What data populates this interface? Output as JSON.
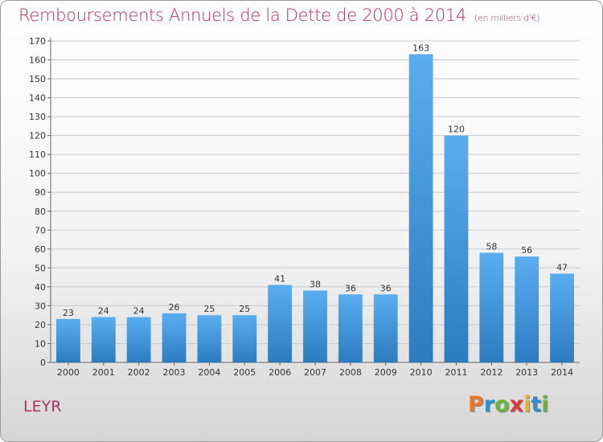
{
  "header": {
    "title": "Remboursements Annuels de la Dette de 2000 à 2014",
    "unit": "(en milliers d'€)"
  },
  "footer": {
    "place": "LEYR",
    "logo_letters": [
      "P",
      "r",
      "o",
      "x",
      "i",
      "t",
      "i"
    ],
    "logo_colors": [
      "#e8782a",
      "#2f8fd0",
      "#6cb33e",
      "#d93a3a",
      "#e8b020",
      "#2f8fd0",
      "#6cb33e"
    ]
  },
  "colors": {
    "title": "#b03060",
    "bar_light": "#5aaef0",
    "bar_dark": "#2b7cc0",
    "grid": "#c8c8c8"
  },
  "chart_data": {
    "type": "bar",
    "categories": [
      "2000",
      "2001",
      "2002",
      "2003",
      "2004",
      "2005",
      "2006",
      "2007",
      "2008",
      "2009",
      "2010",
      "2011",
      "2012",
      "2013",
      "2014"
    ],
    "values": [
      23,
      24,
      24,
      26,
      25,
      25,
      41,
      38,
      36,
      36,
      163,
      120,
      58,
      56,
      47
    ],
    "ylim": [
      0,
      170
    ],
    "yticks": [
      0,
      10,
      20,
      30,
      40,
      50,
      60,
      70,
      80,
      90,
      100,
      110,
      120,
      130,
      140,
      150,
      160,
      170
    ],
    "grid": true,
    "data_labels": true
  }
}
